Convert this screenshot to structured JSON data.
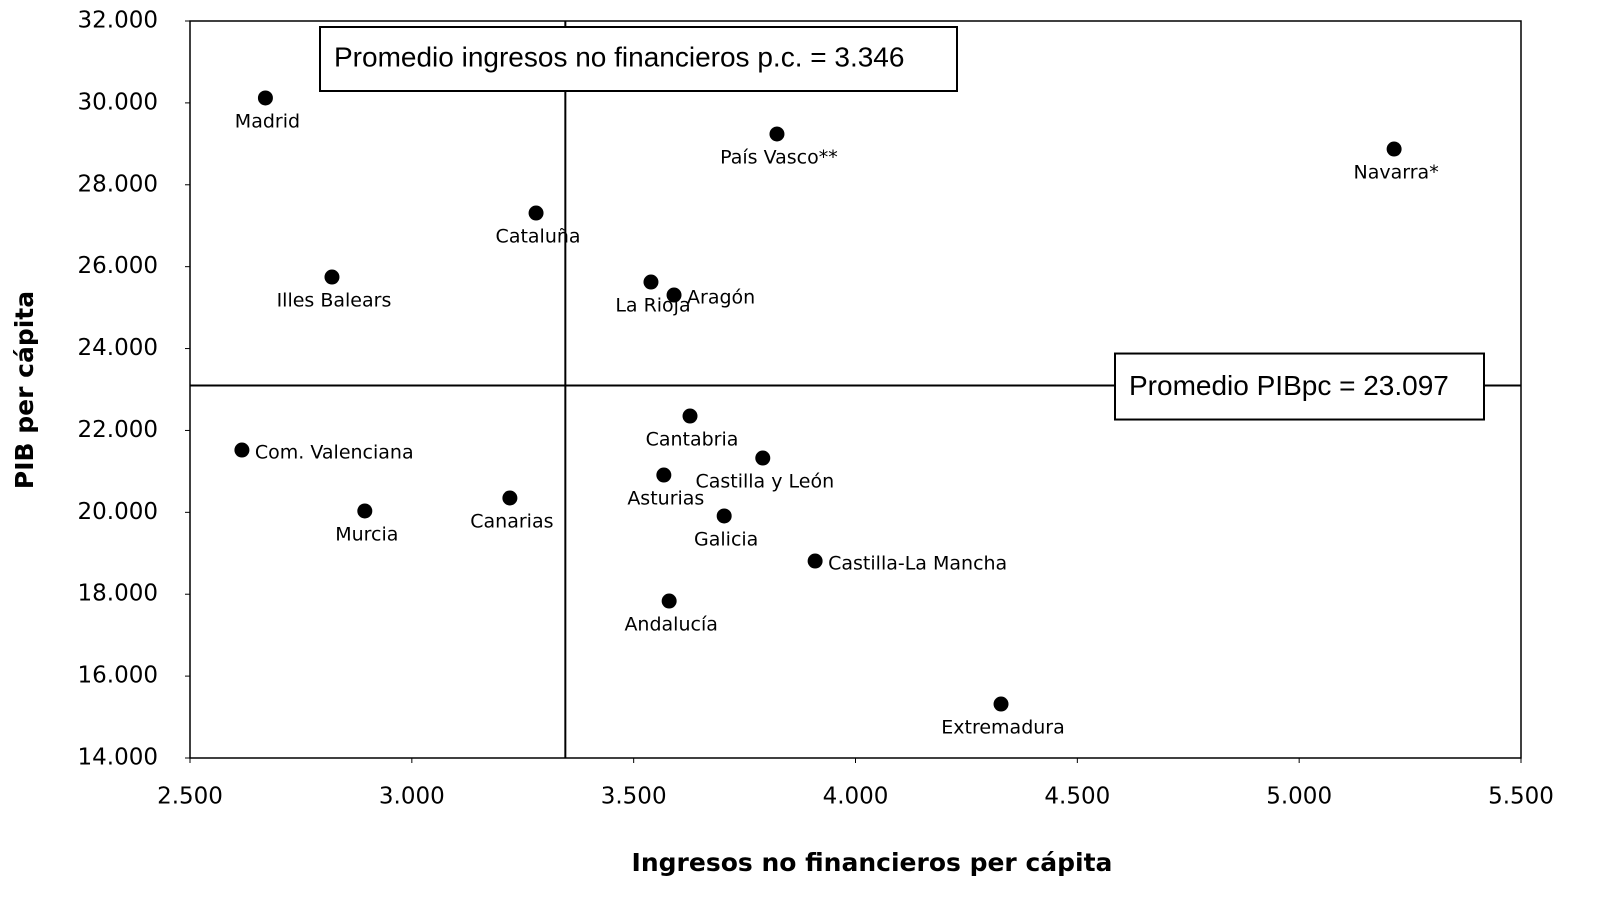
{
  "chart_data": {
    "type": "scatter",
    "x_label": "Ingresos no financieros per cápita",
    "y_label": "PIB per cápita",
    "labels": [
      "Madrid",
      "País Vasco**",
      "Navarra*",
      "Cataluña",
      "Illes Balears",
      "La Rioja",
      "Aragón",
      "Cantabria",
      "Com. Valenciana",
      "Castilla y León",
      "Asturias",
      "Canarias",
      "Murcia",
      "Galicia",
      "Castilla-La Mancha",
      "Andalucía",
      "Extremadura"
    ],
    "x": [
      2670,
      3823,
      5214,
      3280,
      2820,
      3539,
      3591,
      3627,
      2617,
      3791,
      3568,
      3221,
      2894,
      3704,
      3909,
      3580,
      4328
    ],
    "values": [
      30120,
      29240,
      28873,
      27310,
      25747,
      25625,
      25307,
      22352,
      21521,
      21326,
      20911,
      20350,
      20033,
      19911,
      18810,
      17834,
      15318
    ],
    "color": "#000000",
    "xlim": [
      2500,
      5500
    ],
    "xticks": [
      {
        "value": 2500,
        "label": "2.500"
      },
      {
        "value": 3000,
        "label": "3.000"
      },
      {
        "value": 3500,
        "label": "3.500"
      },
      {
        "value": 4000,
        "label": "4.000"
      },
      {
        "value": 4500,
        "label": "4.500"
      },
      {
        "value": 5000,
        "label": "5.000"
      },
      {
        "value": 5500,
        "label": "5.500"
      }
    ],
    "ylim": [
      14000,
      32000
    ],
    "yticks": [
      {
        "value": 14000,
        "label": "14.000"
      },
      {
        "value": 16000,
        "label": "16.000"
      },
      {
        "value": 18000,
        "label": "18.000"
      },
      {
        "value": 20000,
        "label": "20.000"
      },
      {
        "value": 22000,
        "label": "22.000"
      },
      {
        "value": 24000,
        "label": "24.000"
      },
      {
        "value": 26000,
        "label": "26.000"
      },
      {
        "value": 28000,
        "label": "28.000"
      },
      {
        "value": 30000,
        "label": "30.000"
      },
      {
        "value": 32000,
        "label": "32.000"
      }
    ],
    "vline": {
      "value": 3346,
      "label": "Promedio ingresos no financieros p.c. = 3.346"
    },
    "hline": {
      "value": 23097,
      "label": "Promedio PIBpc = 23.097"
    },
    "grid": false
  }
}
